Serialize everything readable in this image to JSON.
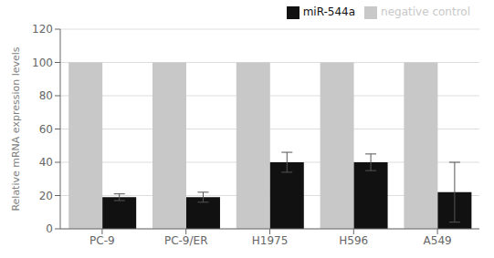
{
  "chart_data": {
    "type": "bar",
    "categories": [
      "PC-9",
      "PC-9/ER",
      "H1975",
      "H596",
      "A549"
    ],
    "series": [
      {
        "name": "negative control",
        "color": "#c8c8c8",
        "values": [
          100,
          100,
          100,
          100,
          100
        ]
      },
      {
        "name": "miR-544a",
        "color": "#111111",
        "values": [
          19,
          19,
          40,
          40,
          22
        ],
        "errors": [
          2,
          3,
          6,
          5,
          18
        ]
      }
    ],
    "ylabel": "Relative mRNA expression levels",
    "ylim": [
      0,
      120
    ],
    "yticks": [
      0,
      20,
      40,
      60,
      80,
      100,
      120
    ],
    "grid": true,
    "legend": "upper right"
  }
}
